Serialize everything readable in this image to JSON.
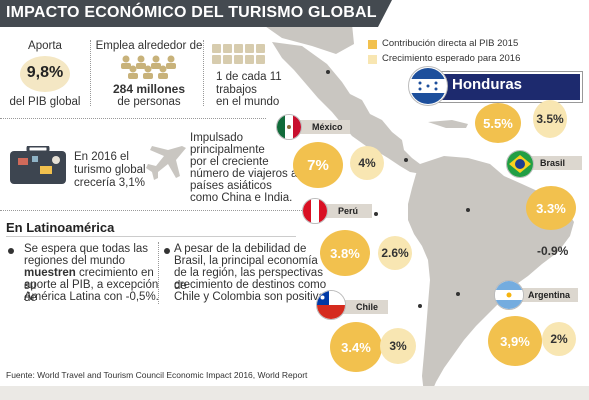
{
  "title": "IMPACTO ECONÓMICO DEL TURISMO GLOBAL",
  "stats": {
    "aporta_label": "Aporta",
    "aporta_value": "9,8%",
    "aporta_sub": "del PIB global",
    "emplea_label": "Emplea alrededor de",
    "emplea_value": "284 millones",
    "emplea_sub": "de personas",
    "ratio_line1": "1 de cada 11",
    "ratio_line2": "trabajos",
    "ratio_line3": "en el mundo"
  },
  "info": {
    "forecast_line1": "En 2016 el",
    "forecast_line2": "turismo global",
    "forecast_line3": "crecería 3,1%",
    "driver_line1": "Impulsado",
    "driver_line2": "principalmente",
    "driver_line3": "por el creciente",
    "driver_line4": "número de viajeros a",
    "driver_line5": "países asiáticos",
    "driver_line6": "como China e India."
  },
  "latam": {
    "heading": "En Latinoamérica",
    "bullet1": [
      "Se espera que todas las",
      "regiones del mundo",
      "muestren crecimiento en su",
      "aporte al PIB, a excepción de",
      "América Latina con -0,5%."
    ],
    "bullet1_bold": "muestren",
    "bullet2": [
      "A pesar de la debilidad de",
      "Brasil, la principal economía",
      "de la región, las perspectivas de",
      "crecimiento de destinos como",
      "Chile y Colombia son positivas."
    ]
  },
  "legend": {
    "item1": "Contribución directa al PIB 2015",
    "item2": "Crecimiento esperado para 2016",
    "color_dark": "#f2c14e",
    "color_light": "#f8e6b2"
  },
  "countries": {
    "honduras": {
      "name": "Honduras",
      "pib": "5.5%",
      "growth": "3.5%"
    },
    "mexico": {
      "name": "México",
      "pib": "7%",
      "growth": "4%"
    },
    "brasil": {
      "name": "Brasil",
      "pib": "3.3%",
      "growth": "-0.9%"
    },
    "peru": {
      "name": "Perú",
      "pib": "3.8%",
      "growth": "2.6%"
    },
    "argentina": {
      "name": "Argentina",
      "pib": "3,9%",
      "growth": "2%"
    },
    "chile": {
      "name": "Chile",
      "pib": "3.4%",
      "growth": "3%"
    }
  },
  "source": "Fuente: World Travel and Tourism Council Economic Impact 2016, World Report"
}
